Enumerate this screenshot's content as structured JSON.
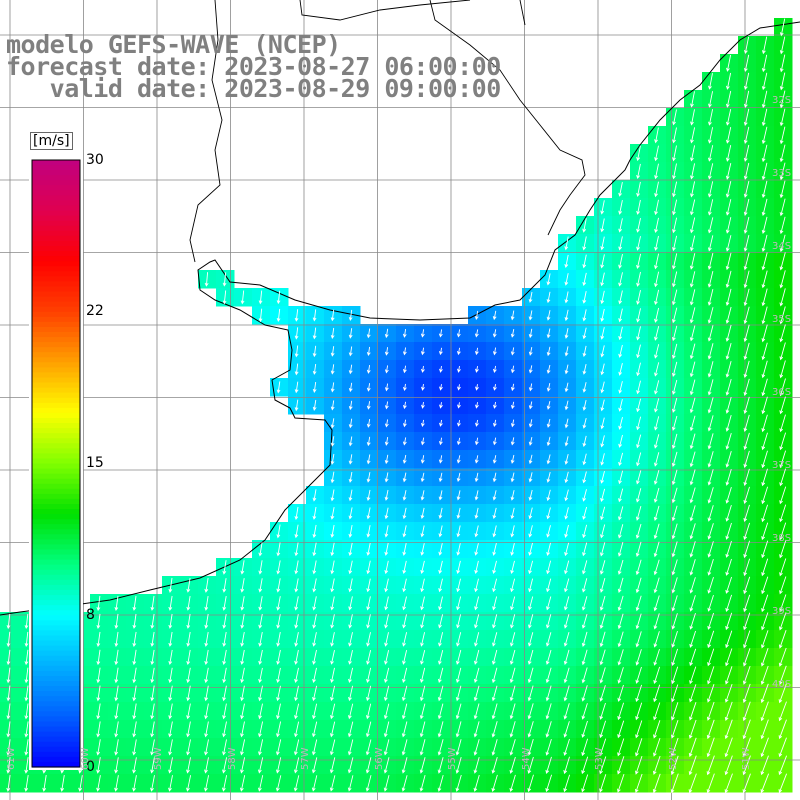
{
  "title": {
    "line1": "modelo GEFS-WAVE (NCEP)",
    "line2": "forecast date: 2023-08-27 06:00:00",
    "line3": "   valid date: 2023-08-29 09:00:00"
  },
  "colorbar": {
    "unit": "[m/s]",
    "ticks": [
      "30",
      "22",
      "15",
      "8",
      "0"
    ],
    "tick_values": [
      30,
      22,
      15,
      8,
      0
    ],
    "range": [
      0,
      30
    ],
    "colors": [
      "#0000ff",
      "#0060ff",
      "#00b0ff",
      "#00ffff",
      "#00ff80",
      "#00e000",
      "#80ff00",
      "#ffff00",
      "#ffa000",
      "#ff4000",
      "#ff0000",
      "#e00050",
      "#c00080"
    ]
  },
  "map": {
    "variable": "wind speed",
    "longitude_labels": [
      "61W",
      "60W",
      "59W",
      "58W",
      "57W",
      "56W",
      "55W",
      "54W",
      "53W",
      "52W",
      "51W"
    ],
    "latitude_labels": [
      "32S",
      "33S",
      "34S",
      "35S",
      "36S",
      "37S",
      "38S",
      "39S",
      "40S"
    ],
    "land_color": "#ffffff",
    "grid_color": "#888888",
    "coast_color": "#000000",
    "arrow_color": "#ffffff",
    "wind_direction": "from north-east"
  }
}
